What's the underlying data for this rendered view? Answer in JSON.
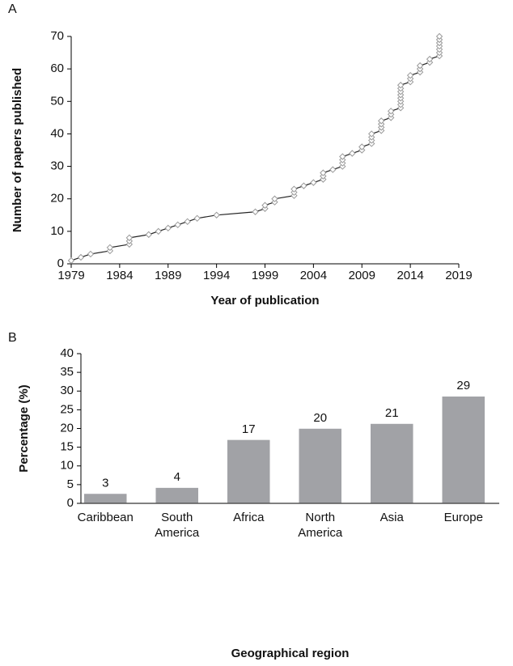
{
  "chart_data": [
    {
      "type": "line",
      "panel_label": "A",
      "x_label": "Year of publication",
      "y_label": "Number of papers published",
      "x": [
        1979,
        1980,
        1981,
        1983,
        1983,
        1985,
        1985,
        1985,
        1987,
        1988,
        1989,
        1990,
        1991,
        1992,
        1994,
        1998,
        1999,
        1999,
        2000,
        2000,
        2002,
        2002,
        2002,
        2003,
        2004,
        2005,
        2005,
        2005,
        2006,
        2007,
        2007,
        2007,
        2007,
        2008,
        2009,
        2009,
        2010,
        2010,
        2010,
        2010,
        2011,
        2011,
        2011,
        2011,
        2012,
        2012,
        2012,
        2013,
        2013,
        2013,
        2013,
        2013,
        2013,
        2013,
        2013,
        2014,
        2014,
        2014,
        2015,
        2015,
        2015,
        2016,
        2016,
        2017,
        2017,
        2017,
        2017,
        2017,
        2017,
        2017
      ],
      "values": [
        1,
        2,
        3,
        4,
        5,
        6,
        7,
        8,
        9,
        10,
        11,
        12,
        13,
        14,
        15,
        16,
        17,
        18,
        19,
        20,
        21,
        22,
        23,
        24,
        25,
        26,
        27,
        28,
        29,
        30,
        31,
        32,
        33,
        34,
        35,
        36,
        37,
        38,
        39,
        40,
        41,
        42,
        43,
        44,
        45,
        46,
        47,
        48,
        49,
        50,
        51,
        52,
        53,
        54,
        55,
        56,
        57,
        58,
        59,
        60,
        61,
        62,
        63,
        64,
        65,
        66,
        67,
        68,
        69,
        70
      ],
      "color": "#222222",
      "marker_color": "#9a9a9a",
      "xlim": [
        1979,
        2019
      ],
      "xticks": [
        1979,
        1984,
        1989,
        1994,
        1999,
        2004,
        2009,
        2014,
        2019
      ],
      "ylim": [
        0,
        70
      ],
      "yticks": [
        0,
        10,
        20,
        30,
        40,
        50,
        60,
        70
      ]
    },
    {
      "type": "bar",
      "panel_label": "B",
      "x_label": "Geographical region",
      "y_label": "Percentage (%)",
      "categories": [
        "Caribbean",
        "South America",
        "Africa",
        "North America",
        "Asia",
        "Europe"
      ],
      "values": [
        2.7,
        4.3,
        17.1,
        20.1,
        21.4,
        28.7
      ],
      "value_labels": [
        "3",
        "4",
        "17",
        "20",
        "21",
        "29"
      ],
      "color": "#a1a2a6",
      "ylim": [
        0,
        40
      ],
      "yticks": [
        0,
        5,
        10,
        15,
        20,
        25,
        30,
        35,
        40
      ]
    }
  ]
}
